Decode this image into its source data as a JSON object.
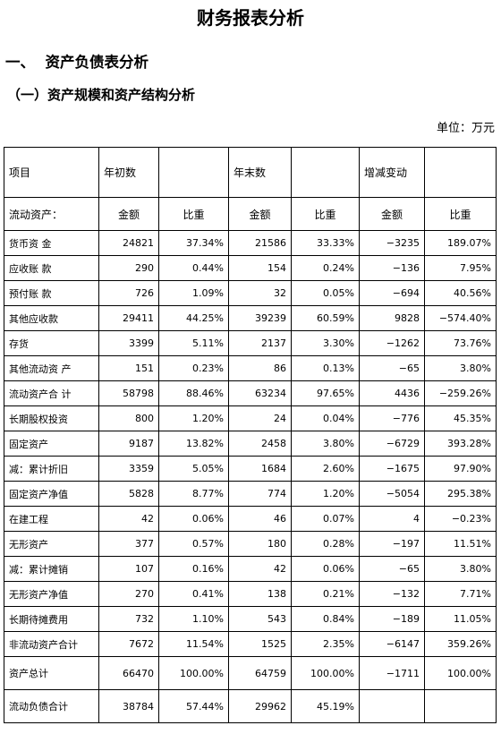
{
  "title": "财务报表分析",
  "section1": "一、  资产负债表分析",
  "section1_1": "（一）资产规模和资产结构分析",
  "unit": "单位：万元",
  "header": {
    "col_item": "项目",
    "col_begin": "年初数",
    "col_end": "年末数",
    "col_change": "增减变动",
    "sub_label": "流动资产：",
    "amount": "金额",
    "ratio": "比重"
  },
  "rows": [
    {
      "name": "货币资 金",
      "a1": "24821",
      "r1": "37.34%",
      "a2": "21586",
      "r2": "33.33%",
      "a3": "−3235",
      "r3": "189.07%"
    },
    {
      "name": "应收账 款",
      "a1": "290",
      "r1": "0.44%",
      "a2": "154",
      "r2": "0.24%",
      "a3": "−136",
      "r3": "7.95%"
    },
    {
      "name": "预付账 款",
      "a1": "726",
      "r1": "1.09%",
      "a2": "32",
      "r2": "0.05%",
      "a3": "−694",
      "r3": "40.56%"
    },
    {
      "name": "其他应收款",
      "a1": "29411",
      "r1": "44.25%",
      "a2": "39239",
      "r2": "60.59%",
      "a3": "9828",
      "r3": "−574.40%"
    },
    {
      "name": "存货",
      "a1": "3399",
      "r1": "5.11%",
      "a2": "2137",
      "r2": "3.30%",
      "a3": "−1262",
      "r3": "73.76%"
    },
    {
      "name": "其他流动资 产",
      "a1": "151",
      "r1": "0.23%",
      "a2": "86",
      "r2": "0.13%",
      "a3": "−65",
      "r3": "3.80%"
    },
    {
      "name": "流动资产合 计",
      "a1": "58798",
      "r1": "88.46%",
      "a2": "63234",
      "r2": "97.65%",
      "a3": "4436",
      "r3": "−259.26%"
    },
    {
      "name": "长期股权投资",
      "a1": "800",
      "r1": "1.20%",
      "a2": "24",
      "r2": "0.04%",
      "a3": "−776",
      "r3": "45.35%"
    },
    {
      "name": "固定资产",
      "a1": "9187",
      "r1": "13.82%",
      "a2": "2458",
      "r2": "3.80%",
      "a3": "−6729",
      "r3": "393.28%"
    },
    {
      "name": "减：累计折旧",
      "a1": "3359",
      "r1": "5.05%",
      "a2": "1684",
      "r2": "2.60%",
      "a3": "−1675",
      "r3": "97.90%"
    },
    {
      "name": "固定资产净值",
      "a1": "5828",
      "r1": "8.77%",
      "a2": "774",
      "r2": "1.20%",
      "a3": "−5054",
      "r3": "295.38%"
    },
    {
      "name": "在建工程",
      "a1": "42",
      "r1": "0.06%",
      "a2": "46",
      "r2": "0.07%",
      "a3": "4",
      "r3": "−0.23%"
    },
    {
      "name": "无形资产",
      "a1": "377",
      "r1": "0.57%",
      "a2": "180",
      "r2": "0.28%",
      "a3": "−197",
      "r3": "11.51%"
    },
    {
      "name": "减：累计摊销",
      "a1": "107",
      "r1": "0.16%",
      "a2": "42",
      "r2": "0.06%",
      "a3": "−65",
      "r3": "3.80%"
    },
    {
      "name": "无形资产净值",
      "a1": "270",
      "r1": "0.41%",
      "a2": "138",
      "r2": "0.21%",
      "a3": "−132",
      "r3": "7.71%"
    },
    {
      "name": "长期待摊费用",
      "a1": "732",
      "r1": "1.10%",
      "a2": "543",
      "r2": "0.84%",
      "a3": "−189",
      "r3": "11.05%"
    },
    {
      "name": "非流动资产合计",
      "a1": "7672",
      "r1": "11.54%",
      "a2": "1525",
      "r2": "2.35%",
      "a3": "−6147",
      "r3": "359.26%"
    },
    {
      "name": "资产总计",
      "a1": "66470",
      "r1": "100.00%",
      "a2": "64759",
      "r2": "100.00%",
      "a3": "−1711",
      "r3": "100.00%"
    },
    {
      "name": "流动负债合计",
      "a1": "38784",
      "r1": "57.44%",
      "a2": "29962",
      "r2": "45.19%",
      "a3": "",
      "r3": ""
    }
  ]
}
